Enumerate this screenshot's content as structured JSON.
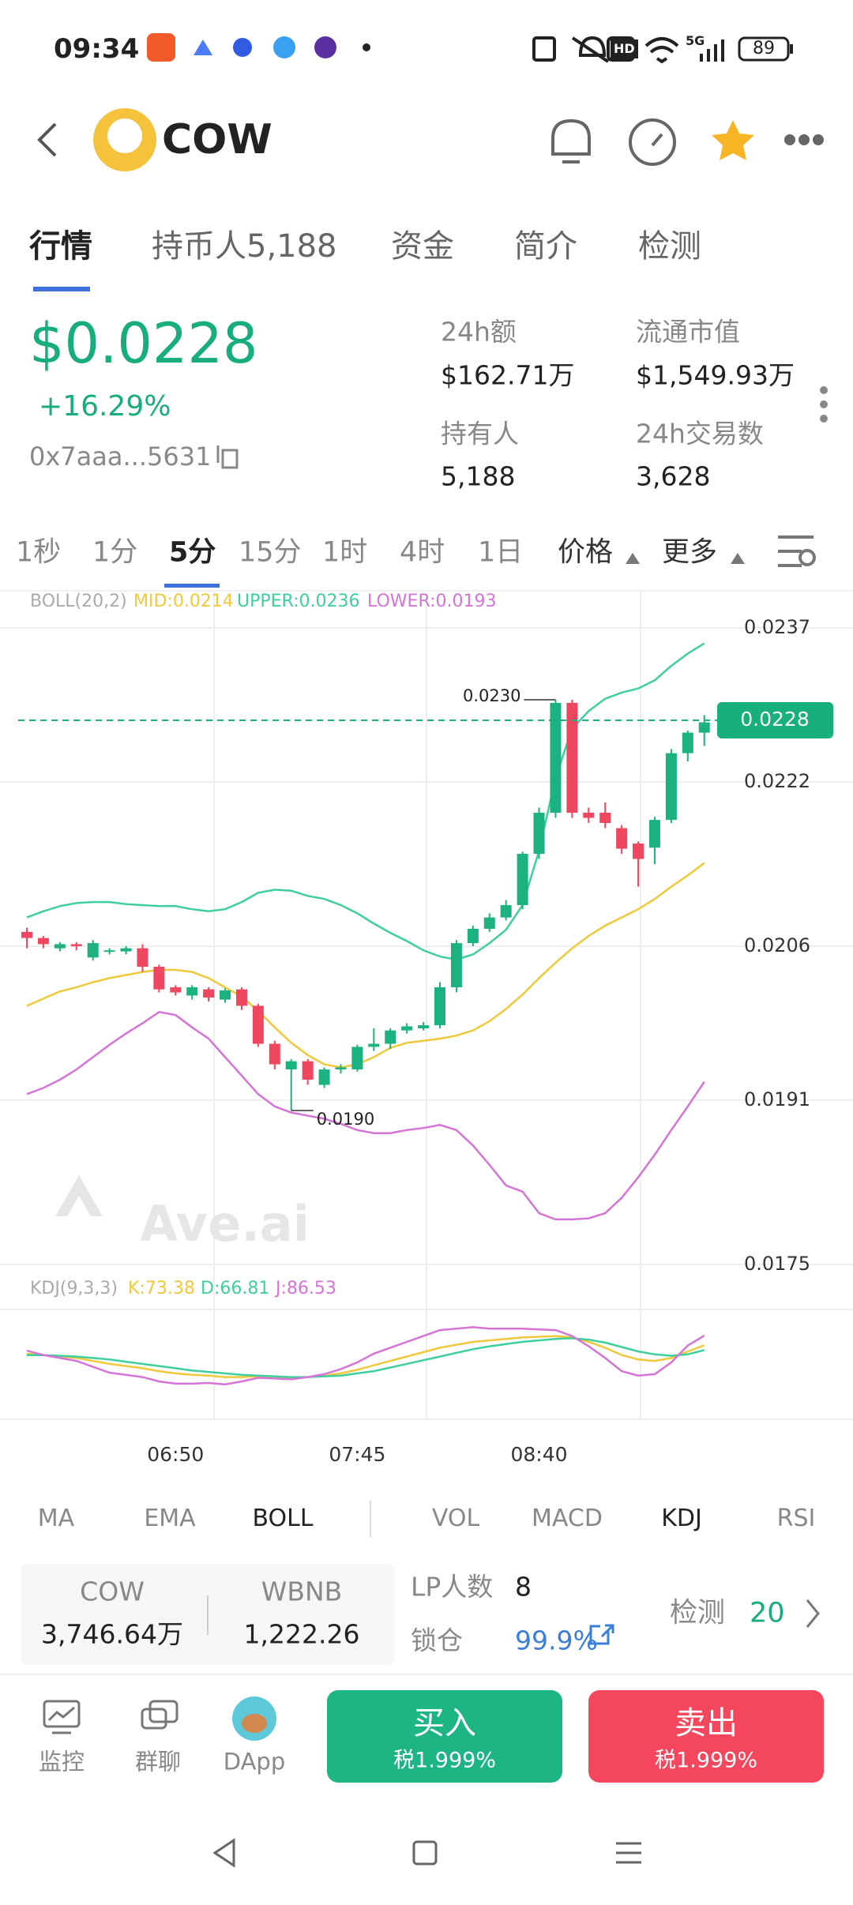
{
  "status": {
    "time": "09:34",
    "hd": "HD",
    "network": "5G",
    "battery": "89"
  },
  "header": {
    "title": "COW"
  },
  "tabs": [
    "行情",
    "持币人5,188",
    "资金",
    "简介",
    "检测"
  ],
  "price": {
    "value": "$0.0228",
    "change": "+16.29%",
    "address": "0x7aaa...5631"
  },
  "stats": [
    {
      "label": "24h额",
      "value": "$162.71万"
    },
    {
      "label": "流通市值",
      "value": "$1,549.93万"
    },
    {
      "label": "持有人",
      "value": "5,188"
    },
    {
      "label": "24h交易数",
      "value": "3,628"
    }
  ],
  "intervals": [
    "1秒",
    "1分",
    "5分",
    "15分",
    "1时",
    "4时",
    "1日"
  ],
  "price_menu": "价格",
  "more_menu": "更多",
  "chart_data": {
    "type": "candlestick",
    "indicator_label": "BOLL(20,2)",
    "categories": [
      null,
      null,
      null,
      null,
      null,
      null,
      null,
      null,
      null,
      "06:50",
      null,
      null,
      null,
      null,
      null,
      null,
      null,
      null,
      null,
      null,
      "07:45",
      null,
      null,
      null,
      null,
      null,
      null,
      null,
      null,
      null,
      null,
      "08:40",
      null,
      null,
      null,
      null,
      null,
      null,
      null,
      null,
      null,
      null
    ],
    "open": [
      0.02074,
      0.02068,
      0.02058,
      0.02062,
      0.02049,
      0.02055,
      0.02055,
      0.02058,
      0.0204,
      0.0202,
      0.02012,
      0.02018,
      0.02008,
      0.02018,
      0.02002,
      0.01965,
      0.0194,
      0.01948,
      0.01925,
      0.0194,
      0.0194,
      0.01962,
      0.01965,
      0.01978,
      0.0198,
      0.01983,
      0.0202,
      0.02063,
      0.02077,
      0.02088,
      0.021,
      0.0215,
      0.0219,
      0.02297,
      0.0219,
      0.0219,
      0.02175,
      0.0216,
      0.02156,
      0.02183,
      0.02248,
      0.02268
    ],
    "high": [
      0.02078,
      0.0207,
      0.02064,
      0.02064,
      0.02066,
      0.02058,
      0.0206,
      0.02062,
      0.02042,
      0.02022,
      0.02022,
      0.0202,
      0.02019,
      0.0202,
      0.02004,
      0.01968,
      0.0195,
      0.0195,
      0.01942,
      0.01945,
      0.01964,
      0.0198,
      0.0198,
      0.01985,
      0.01986,
      0.02025,
      0.02066,
      0.0208,
      0.02092,
      0.02105,
      0.02152,
      0.02195,
      0.023,
      0.023,
      0.02195,
      0.022,
      0.02178,
      0.02162,
      0.02186,
      0.02252,
      0.0227,
      0.02285
    ],
    "low": [
      0.02058,
      0.02058,
      0.02055,
      0.02056,
      0.02046,
      0.02052,
      0.02052,
      0.02035,
      0.02015,
      0.02012,
      0.02008,
      0.02006,
      0.02005,
      0.01998,
      0.01962,
      0.0194,
      0.019,
      0.01925,
      0.01922,
      0.01936,
      0.01938,
      0.01958,
      0.0196,
      0.01975,
      0.01978,
      0.0198,
      0.02015,
      0.0206,
      0.02074,
      0.02085,
      0.02096,
      0.02145,
      0.02185,
      0.02185,
      0.0218,
      0.02175,
      0.0215,
      0.02118,
      0.0214,
      0.0218,
      0.0224,
      0.02255
    ],
    "close": [
      0.02068,
      0.02062,
      0.02062,
      0.0206,
      0.02063,
      0.02056,
      0.02058,
      0.0204,
      0.02018,
      0.02015,
      0.0202,
      0.0201,
      0.02017,
      0.02002,
      0.01965,
      0.01945,
      0.01948,
      0.0193,
      0.0194,
      0.01942,
      0.01962,
      0.01965,
      0.01978,
      0.01982,
      0.01983,
      0.0202,
      0.02063,
      0.02077,
      0.02088,
      0.021,
      0.0215,
      0.0219,
      0.02297,
      0.0219,
      0.02185,
      0.0218,
      0.02155,
      0.02145,
      0.02183,
      0.02248,
      0.02268,
      0.02278
    ],
    "up_color": "#1bb180",
    "down_color": "#ef4760",
    "series": [
      {
        "name": "MID:0.0214",
        "color": "#f0c93a",
        "values": [
          0.02002,
          0.02009,
          0.02016,
          0.0202,
          0.02025,
          0.02029,
          0.02032,
          0.02035,
          0.02037,
          0.02037,
          0.02035,
          0.02029,
          0.0202,
          0.02011,
          0.01997,
          0.01981,
          0.01966,
          0.01954,
          0.01945,
          0.01942,
          0.01945,
          0.01952,
          0.01961,
          0.01966,
          0.01968,
          0.0197,
          0.01973,
          0.01978,
          0.01987,
          0.01999,
          0.02013,
          0.02029,
          0.02044,
          0.02058,
          0.0207,
          0.0208,
          0.02088,
          0.02096,
          0.02106,
          0.02118,
          0.02129,
          0.02141
        ]
      },
      {
        "name": "UPPER:0.0236",
        "color": "#3fcf9f",
        "values": [
          0.02088,
          0.02094,
          0.02099,
          0.02102,
          0.02103,
          0.02103,
          0.02101,
          0.021,
          0.02099,
          0.02099,
          0.02096,
          0.02094,
          0.02096,
          0.02103,
          0.02112,
          0.02115,
          0.02114,
          0.02109,
          0.02106,
          0.021,
          0.02092,
          0.02082,
          0.02073,
          0.02065,
          0.02056,
          0.0205,
          0.02047,
          0.02052,
          0.02063,
          0.02076,
          0.021,
          0.02153,
          0.02224,
          0.02272,
          0.02289,
          0.02301,
          0.02307,
          0.02311,
          0.02319,
          0.02333,
          0.02345,
          0.02355
        ]
      },
      {
        "name": "LOWER:0.0193",
        "color": "#d574d6",
        "values": [
          0.01916,
          0.01922,
          0.0193,
          0.0194,
          0.01952,
          0.01964,
          0.01975,
          0.01985,
          0.01996,
          0.01993,
          0.01981,
          0.0197,
          0.01952,
          0.01934,
          0.01916,
          0.01904,
          0.01898,
          0.01895,
          0.01892,
          0.01887,
          0.01881,
          0.01878,
          0.01878,
          0.01881,
          0.01883,
          0.01886,
          0.01881,
          0.01866,
          0.01847,
          0.01827,
          0.01821,
          0.018,
          0.01794,
          0.01794,
          0.01795,
          0.018,
          0.01815,
          0.01835,
          0.01857,
          0.01881,
          0.01904,
          0.01928
        ]
      }
    ],
    "ylim": [
      0.01727,
      0.0239
    ],
    "yticks": [
      0.0237,
      0.0222,
      0.0206,
      0.0191,
      0.0175
    ],
    "grid": true,
    "last_price": 0.0228,
    "high_label": {
      "value": 0.023,
      "label": "0.0230"
    },
    "low_label": {
      "value": 0.019,
      "label": "0.0190"
    },
    "watermark": "Ave.ai",
    "kdj": {
      "label": "KDJ(9,3,3)",
      "ylim": [
        -20,
        120
      ],
      "series": [
        {
          "name": "K:73.38",
          "color": "#f0c93a",
          "values": [
            62,
            60,
            58,
            56,
            52,
            48,
            45,
            42,
            38,
            35,
            33,
            32,
            30,
            30,
            31,
            30,
            29,
            30,
            32,
            35,
            40,
            46,
            52,
            58,
            64,
            70,
            74,
            78,
            80,
            82,
            84,
            85,
            86,
            84,
            78,
            70,
            60,
            54,
            52,
            56,
            65,
            73.38
          ]
        },
        {
          "name": "D:66.81",
          "color": "#3fcf9f",
          "values": [
            60,
            60,
            59,
            58,
            56,
            54,
            51,
            48,
            45,
            42,
            39,
            37,
            35,
            33,
            32,
            31,
            30,
            30,
            31,
            32,
            35,
            38,
            43,
            48,
            53,
            58,
            63,
            68,
            72,
            75,
            78,
            80,
            82,
            83,
            81,
            77,
            71,
            65,
            61,
            59,
            61,
            66.81
          ]
        },
        {
          "name": "J:86.53",
          "color": "#d574d6",
          "values": [
            66,
            60,
            56,
            52,
            44,
            36,
            33,
            30,
            24,
            21,
            21,
            22,
            20,
            24,
            29,
            28,
            27,
            30,
            34,
            41,
            50,
            62,
            70,
            78,
            86,
            94,
            96,
            98,
            96,
            96,
            96,
            95,
            94,
            86,
            72,
            56,
            38,
            32,
            34,
            50,
            73,
            86.53
          ]
        }
      ]
    }
  },
  "indicators": {
    "main": [
      "MA",
      "EMA",
      "BOLL"
    ],
    "sub": [
      "VOL",
      "MACD",
      "KDJ",
      "RSI"
    ]
  },
  "pool": {
    "tokens": [
      {
        "name": "COW",
        "amount": "3,746.64万"
      },
      {
        "name": "WBNB",
        "amount": "1,222.26"
      }
    ],
    "lp_label": "LP人数",
    "lp_count": 8,
    "lock_label": "锁仓",
    "lock": "99.9%",
    "check_label": "检测",
    "check_count": 20
  },
  "nav": [
    "监控",
    "群聊",
    "DApp"
  ],
  "buy": {
    "label": "买入",
    "tax": "税1.999%"
  },
  "sell": {
    "label": "卖出",
    "tax": "税1.999%"
  }
}
